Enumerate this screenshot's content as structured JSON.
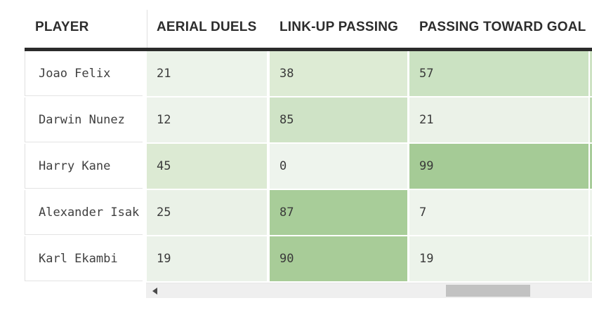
{
  "table": {
    "columns": [
      {
        "id": "player",
        "label": "PLAYER"
      },
      {
        "id": "aerial-duels",
        "label": "AERIAL DUELS"
      },
      {
        "id": "link-up-passing",
        "label": "LINK-UP PASSING"
      },
      {
        "id": "passing-toward-goal",
        "label": "PASSING TOWARD GOAL"
      }
    ],
    "rows": [
      {
        "player": "Joao Felix",
        "values": [
          {
            "value": "21",
            "color": "#ecf3ea"
          },
          {
            "value": "38",
            "color": "#ddebd4"
          },
          {
            "value": "57",
            "color": "#cbe2c2"
          }
        ],
        "sliver_color": "#cde2c3"
      },
      {
        "player": "Darwin Nunez",
        "values": [
          {
            "value": "12",
            "color": "#edf3eb"
          },
          {
            "value": "85",
            "color": "#cfe3c6"
          },
          {
            "value": "21",
            "color": "#ebf2e8"
          }
        ],
        "sliver_color": "#bed9b2"
      },
      {
        "player": "Harry Kane",
        "values": [
          {
            "value": "45",
            "color": "#dcead3"
          },
          {
            "value": "0",
            "color": "#eef4ed"
          },
          {
            "value": "99",
            "color": "#a5cb96"
          }
        ],
        "sliver_color": "#a8cc9a"
      },
      {
        "player": "Alexander Isak",
        "values": [
          {
            "value": "25",
            "color": "#eaf1e7"
          },
          {
            "value": "87",
            "color": "#a8cd99"
          },
          {
            "value": "7",
            "color": "#eef4ec"
          }
        ],
        "sliver_color": "#eef4ec"
      },
      {
        "player": "Karl Ekambi",
        "values": [
          {
            "value": "19",
            "color": "#ebf2e9"
          },
          {
            "value": "90",
            "color": "#a8cc98"
          },
          {
            "value": "19",
            "color": "#ecf3ea"
          }
        ],
        "sliver_color": "#e3eedd"
      }
    ]
  },
  "colors": {
    "header_text": "#2d2d2d",
    "body_text": "#3a3a3a",
    "top_border": "#2b2b2b",
    "scale_low": "#eef4ed",
    "scale_high": "#a5cb96",
    "scrollbar_track": "#efefef",
    "scrollbar_thumb": "#c2c2c2"
  },
  "chart_data": {
    "type": "heatmap",
    "rows": [
      "Joao Felix",
      "Darwin Nunez",
      "Harry Kane",
      "Alexander Isak",
      "Karl Ekambi"
    ],
    "columns": [
      "AERIAL DUELS",
      "LINK-UP PASSING",
      "PASSING TOWARD GOAL"
    ],
    "values": [
      [
        21,
        38,
        57
      ],
      [
        12,
        85,
        21
      ],
      [
        45,
        0,
        99
      ],
      [
        25,
        87,
        7
      ],
      [
        19,
        90,
        19
      ]
    ],
    "value_range": [
      0,
      99
    ],
    "color_scale": {
      "low": "#eef4ed",
      "high": "#a5cb96"
    },
    "legend": "none",
    "grid": "off"
  }
}
